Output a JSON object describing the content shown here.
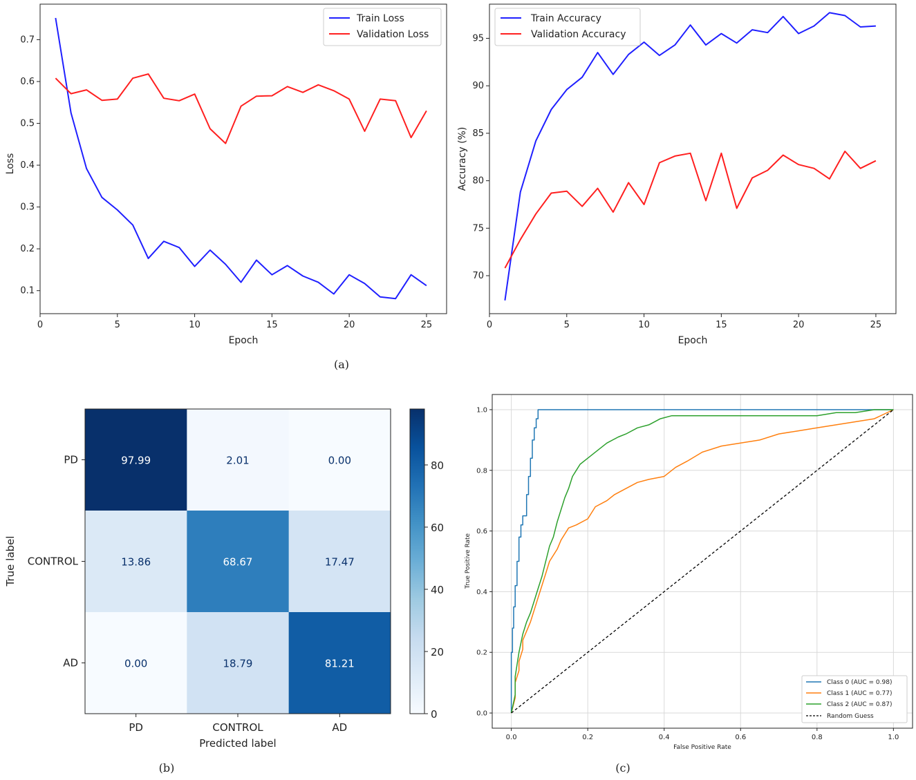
{
  "chart_data": [
    {
      "type": "line",
      "panel": "loss",
      "title": "",
      "xlabel": "Epoch",
      "ylabel": "Loss",
      "xlim": [
        0,
        26.3
      ],
      "ylim": [
        0.045,
        0.785
      ],
      "xticks": [
        0,
        5,
        10,
        15,
        20,
        25
      ],
      "yticks": [
        0.1,
        0.2,
        0.3,
        0.4,
        0.5,
        0.6,
        0.7
      ],
      "ytick_labels": [
        "0.1",
        "0.2",
        "0.3",
        "0.4",
        "0.5",
        "0.6",
        "0.7"
      ],
      "x": [
        1,
        2,
        3,
        4,
        5,
        6,
        7,
        8,
        9,
        10,
        11,
        12,
        13,
        14,
        15,
        16,
        17,
        18,
        19,
        20,
        21,
        22,
        23,
        24,
        25
      ],
      "series": [
        {
          "name": "Train Loss",
          "color": "#1f1fff",
          "values": [
            0.752,
            0.525,
            0.392,
            0.323,
            0.293,
            0.257,
            0.177,
            0.218,
            0.203,
            0.158,
            0.197,
            0.163,
            0.12,
            0.173,
            0.138,
            0.16,
            0.135,
            0.12,
            0.092,
            0.138,
            0.117,
            0.085,
            0.081,
            0.138,
            0.112
          ]
        },
        {
          "name": "Validation Loss",
          "color": "#ff1f1f",
          "values": [
            0.608,
            0.571,
            0.58,
            0.555,
            0.558,
            0.608,
            0.618,
            0.56,
            0.554,
            0.57,
            0.487,
            0.452,
            0.541,
            0.565,
            0.566,
            0.588,
            0.574,
            0.592,
            0.578,
            0.558,
            0.481,
            0.558,
            0.554,
            0.466,
            0.53
          ]
        }
      ],
      "legend_position": "top-right"
    },
    {
      "type": "line",
      "panel": "accuracy",
      "title": "",
      "xlabel": "Epoch",
      "ylabel": "Accuracy (%)",
      "xlim": [
        0,
        26.3
      ],
      "ylim": [
        66,
        98.6
      ],
      "xticks": [
        0,
        5,
        10,
        15,
        20,
        25
      ],
      "yticks": [
        70,
        75,
        80,
        85,
        90,
        95
      ],
      "ytick_labels": [
        "70",
        "75",
        "80",
        "85",
        "90",
        "95"
      ],
      "x": [
        1,
        2,
        3,
        4,
        5,
        6,
        7,
        8,
        9,
        10,
        11,
        12,
        13,
        14,
        15,
        16,
        17,
        18,
        19,
        20,
        21,
        22,
        23,
        24,
        25
      ],
      "series": [
        {
          "name": "Train Accuracy",
          "color": "#1f1fff",
          "values": [
            67.4,
            78.8,
            84.2,
            87.5,
            89.6,
            90.9,
            93.5,
            91.2,
            93.3,
            94.6,
            93.2,
            94.3,
            96.4,
            94.3,
            95.5,
            94.5,
            95.9,
            95.6,
            97.3,
            95.5,
            96.3,
            97.7,
            97.4,
            96.2,
            96.3
          ]
        },
        {
          "name": "Validation Accuracy",
          "color": "#ff1f1f",
          "values": [
            70.8,
            73.8,
            76.5,
            78.7,
            78.9,
            77.3,
            79.2,
            76.7,
            79.8,
            77.5,
            81.9,
            82.6,
            82.9,
            77.9,
            82.9,
            77.1,
            80.3,
            81.1,
            82.7,
            81.7,
            81.3,
            80.2,
            83.1,
            81.3,
            82.1
          ]
        }
      ],
      "legend_position": "top-left"
    },
    {
      "type": "heatmap",
      "panel": "confusion-matrix",
      "xlabel": "Predicted label",
      "ylabel": "True label",
      "row_labels": [
        "PD",
        "CONTROL",
        "AD"
      ],
      "col_labels": [
        "PD",
        "CONTROL",
        "AD"
      ],
      "values": [
        [
          97.99,
          2.01,
          0.0
        ],
        [
          13.86,
          68.67,
          17.47
        ],
        [
          0.0,
          18.79,
          81.21
        ]
      ],
      "cell_text": [
        [
          "97.99",
          "2.01",
          "0.00"
        ],
        [
          "13.86",
          "68.67",
          "17.47"
        ],
        [
          "0.00",
          "18.79",
          "81.21"
        ]
      ],
      "colorbar_range": [
        0,
        97.99
      ],
      "colorbar_ticks": [
        0,
        20,
        40,
        60,
        80
      ],
      "colorbar_tick_labels": [
        "0",
        "20",
        "40",
        "60",
        "80"
      ]
    },
    {
      "type": "line",
      "panel": "roc",
      "xlabel": "False Positive Rate",
      "ylabel": "True Positive Rate",
      "xlim": [
        -0.05,
        1.05
      ],
      "ylim": [
        -0.05,
        1.05
      ],
      "xticks": [
        0.0,
        0.2,
        0.4,
        0.6,
        0.8,
        1.0
      ],
      "yticks": [
        0.0,
        0.2,
        0.4,
        0.6,
        0.8,
        1.0
      ],
      "tick_labels": [
        "0.0",
        "0.2",
        "0.4",
        "0.6",
        "0.8",
        "1.0"
      ],
      "grid": true,
      "series": [
        {
          "name": "Class 0 (AUC = 0.98)",
          "color": "#1f77b4",
          "fpr": [
            0,
            0,
            0.003,
            0.003,
            0.006,
            0.006,
            0.01,
            0.01,
            0.015,
            0.015,
            0.02,
            0.02,
            0.025,
            0.025,
            0.03,
            0.03,
            0.04,
            0.04,
            0.045,
            0.045,
            0.05,
            0.05,
            0.055,
            0.055,
            0.06,
            0.06,
            0.065,
            0.065,
            0.07,
            0.07,
            1.0
          ],
          "tpr": [
            0,
            0.2,
            0.2,
            0.28,
            0.28,
            0.35,
            0.35,
            0.42,
            0.42,
            0.5,
            0.5,
            0.58,
            0.58,
            0.62,
            0.62,
            0.65,
            0.65,
            0.72,
            0.72,
            0.78,
            0.78,
            0.84,
            0.84,
            0.9,
            0.9,
            0.94,
            0.94,
            0.97,
            0.97,
            1.0,
            1.0
          ]
        },
        {
          "name": "Class 1 (AUC = 0.77)",
          "color": "#ff7f0e",
          "fpr": [
            0,
            0.01,
            0.01,
            0.02,
            0.02,
            0.03,
            0.03,
            0.05,
            0.06,
            0.07,
            0.08,
            0.09,
            0.1,
            0.12,
            0.13,
            0.14,
            0.15,
            0.17,
            0.2,
            0.22,
            0.25,
            0.27,
            0.3,
            0.33,
            0.36,
            0.4,
            0.43,
            0.46,
            0.5,
            0.55,
            0.6,
            0.65,
            0.7,
            0.75,
            0.8,
            0.85,
            0.9,
            0.95,
            1.0
          ],
          "tpr": [
            0,
            0.05,
            0.1,
            0.14,
            0.17,
            0.21,
            0.24,
            0.3,
            0.34,
            0.38,
            0.42,
            0.46,
            0.5,
            0.54,
            0.57,
            0.59,
            0.61,
            0.62,
            0.64,
            0.68,
            0.7,
            0.72,
            0.74,
            0.76,
            0.77,
            0.78,
            0.81,
            0.83,
            0.86,
            0.88,
            0.89,
            0.9,
            0.92,
            0.93,
            0.94,
            0.95,
            0.96,
            0.97,
            1.0
          ]
        },
        {
          "name": "Class 2 (AUC = 0.87)",
          "color": "#2ca02c",
          "fpr": [
            0,
            0.01,
            0.01,
            0.02,
            0.03,
            0.04,
            0.05,
            0.06,
            0.07,
            0.08,
            0.09,
            0.1,
            0.11,
            0.12,
            0.13,
            0.14,
            0.15,
            0.16,
            0.17,
            0.18,
            0.2,
            0.22,
            0.25,
            0.28,
            0.3,
            0.33,
            0.36,
            0.39,
            0.42,
            0.5,
            0.6,
            0.7,
            0.8,
            0.85,
            0.9,
            0.95,
            1.0
          ],
          "tpr": [
            0,
            0.06,
            0.12,
            0.2,
            0.26,
            0.3,
            0.33,
            0.37,
            0.41,
            0.45,
            0.5,
            0.55,
            0.58,
            0.63,
            0.67,
            0.71,
            0.74,
            0.78,
            0.8,
            0.82,
            0.84,
            0.86,
            0.89,
            0.91,
            0.92,
            0.94,
            0.95,
            0.97,
            0.98,
            0.98,
            0.98,
            0.98,
            0.98,
            0.99,
            0.99,
            1.0,
            1.0
          ]
        },
        {
          "name": "Random Guess",
          "color": "#000000",
          "dashed": true,
          "fpr": [
            0,
            1
          ],
          "tpr": [
            0,
            1
          ]
        }
      ],
      "legend_position": "bottom-right"
    }
  ],
  "captions": {
    "a": "(a)",
    "b": "(b)",
    "c": "(c)"
  }
}
